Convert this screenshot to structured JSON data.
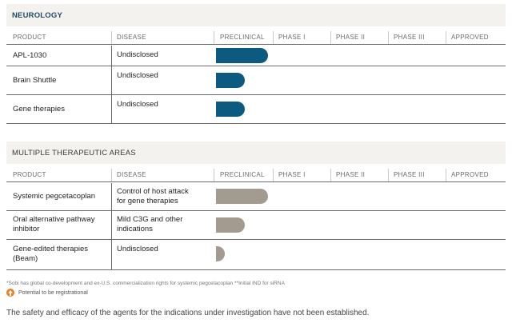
{
  "colors": {
    "neurology_bar": "#0d5a80",
    "multi_bar": "#a39a90",
    "header_bg": "#f4f2ee",
    "registrational_icon": "#f07a1e"
  },
  "columns": [
    "PRODUCT",
    "DISEASE",
    "PRECLINICAL",
    "PHASE I",
    "PHASE II",
    "PHASE III",
    "APPROVED"
  ],
  "neurology": {
    "title": "NEUROLOGY",
    "rows": [
      {
        "product": "APL-1030",
        "disease": "Undisclosed",
        "progress": 0.9
      },
      {
        "product": "Brain Shuttle",
        "disease": "Undisclosed",
        "progress": 0.5
      },
      {
        "product": "Gene therapies",
        "disease": "Undisclosed",
        "progress": 0.5
      }
    ]
  },
  "multi": {
    "title": "MULTIPLE THERAPEUTIC AREAS",
    "rows": [
      {
        "product": "Systemic pegcetacoplan",
        "disease": "Control of host attack for gene therapies",
        "disease_l1": "Control of host attack",
        "disease_l2": "for gene therapies",
        "progress": 0.9
      },
      {
        "product": "Oral alternative pathway inhibitor",
        "product_l1": "Oral alternative pathway",
        "product_l2": "inhibitor",
        "disease": "Mild C3G and other indications",
        "disease_l1": "Mild C3G and other",
        "disease_l2": "indications",
        "progress": 0.5
      },
      {
        "product": "Gene-edited therapies (Beam)",
        "product_l1": "Gene-edited therapies",
        "product_l2": "(Beam)",
        "disease": "Undisclosed",
        "progress": 0.15
      }
    ]
  },
  "footnote": "*Sobi has global co-development and ex-U.S. commercialization rights for systemic pegcetacoplan **Initial IND for siRNA",
  "legend": {
    "icon": "arrow-up-icon",
    "label": "Potential to be registrational"
  },
  "disclaimer": "The safety and efficacy of the agents for the indications under investigation have not been established."
}
